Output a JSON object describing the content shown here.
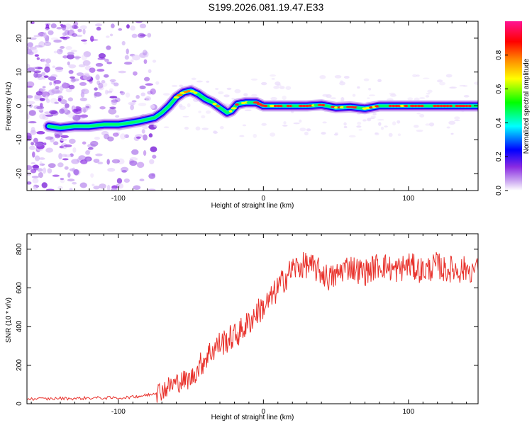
{
  "title": "S199.2026.081.19.47.E33",
  "chart_data": [
    {
      "type": "heatmap",
      "name": "spectrogram",
      "xlabel": "Height of straight line (km)",
      "ylabel": "Frequency (Hz)",
      "xlim": [
        -163,
        148
      ],
      "ylim": [
        -25,
        25
      ],
      "xticks": [
        -100,
        0,
        100
      ],
      "yticks": [
        -20,
        -10,
        0,
        10,
        20
      ],
      "colorbar": {
        "label": "Normalized spectral amplitude",
        "range": [
          0,
          1
        ],
        "ticks": [
          "0.0",
          "0.2",
          "0.4",
          "0.6",
          "0.8"
        ],
        "tick_values": [
          0.0,
          0.2,
          0.4,
          0.6,
          0.8
        ],
        "colors": [
          "#ffffff",
          "#8a2be2",
          "#0000ff",
          "#00ffff",
          "#00ff00",
          "#ffff00",
          "#ff8000",
          "#ff0000",
          "#ff1493"
        ]
      },
      "ridge": {
        "x": [
          -148,
          -140,
          -130,
          -120,
          -110,
          -100,
          -92,
          -85,
          -80,
          -75,
          -70,
          -65,
          -60,
          -55,
          -50,
          -45,
          -40,
          -35,
          -30,
          -25,
          -22,
          -18,
          -12,
          -5,
          0,
          10,
          20,
          30,
          40,
          50,
          60,
          70,
          80,
          90,
          100,
          110,
          120,
          130,
          140,
          148
        ],
        "y": [
          -6,
          -6.5,
          -6,
          -6,
          -5.5,
          -5.5,
          -5,
          -4.5,
          -4,
          -3.5,
          -2,
          0,
          2.5,
          4,
          4.5,
          3.5,
          2,
          1,
          -0.5,
          -2,
          -1.5,
          0.5,
          1,
          1,
          0,
          0,
          0,
          0,
          0.3,
          -0.5,
          -0.3,
          -0.8,
          0,
          0,
          0,
          0,
          0,
          0,
          0,
          0
        ]
      }
    },
    {
      "type": "line",
      "name": "snr",
      "xlabel": "Height of straight line (km)",
      "ylabel": "SNR (10 * v/v)",
      "xlim": [
        -163,
        148
      ],
      "ylim": [
        0,
        880
      ],
      "xticks": [
        -100,
        0,
        100
      ],
      "yticks": [
        0,
        200,
        400,
        600,
        800
      ],
      "color": "#e8302a",
      "series": [
        {
          "name": "SNR",
          "x": [
            -163,
            -150,
            -140,
            -130,
            -120,
            -110,
            -100,
            -90,
            -85,
            -80,
            -75,
            -70,
            -65,
            -60,
            -55,
            -50,
            -45,
            -40,
            -35,
            -30,
            -25,
            -20,
            -15,
            -10,
            -5,
            0,
            5,
            10,
            15,
            20,
            25,
            30,
            35,
            40,
            45,
            50,
            55,
            60,
            65,
            70,
            75,
            80,
            85,
            90,
            95,
            100,
            105,
            110,
            115,
            120,
            125,
            130,
            135,
            140,
            148
          ],
          "y": [
            25,
            25,
            28,
            27,
            30,
            30,
            30,
            35,
            40,
            45,
            55,
            70,
            90,
            110,
            120,
            130,
            180,
            240,
            280,
            310,
            330,
            350,
            380,
            420,
            470,
            500,
            540,
            600,
            650,
            700,
            710,
            720,
            700,
            680,
            650,
            660,
            700,
            710,
            690,
            680,
            700,
            720,
            710,
            690,
            700,
            720,
            700,
            690,
            700,
            720,
            690,
            700,
            690,
            700,
            690
          ]
        }
      ]
    }
  ]
}
